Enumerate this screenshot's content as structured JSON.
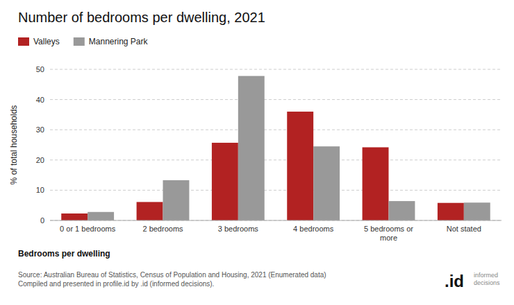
{
  "chart_data": {
    "type": "bar",
    "title": "Number of bedrooms per dwelling, 2021",
    "categories": [
      "0 or 1 bedrooms",
      "2 bedrooms",
      "3 bedrooms",
      "4 bedrooms",
      "5 bedrooms or\nmore",
      "Not stated"
    ],
    "series": [
      {
        "name": "Valleys",
        "color": "#b22222",
        "values": [
          2.3,
          6.1,
          25.7,
          36.0,
          24.2,
          5.8
        ]
      },
      {
        "name": "Mannering Park",
        "color": "#999999",
        "values": [
          2.8,
          13.3,
          47.8,
          24.5,
          6.4,
          5.9
        ]
      }
    ],
    "y_label": "% of total households",
    "x_label": "Bedrooms per dwelling",
    "ylim": [
      0,
      50
    ],
    "yticks": [
      0,
      10,
      20,
      30,
      40,
      50
    ],
    "grid": true,
    "legend": "upper left",
    "annotations": [
      "Source: Australian Bureau of Statistics, Census of Population and Housing, 2021 (Enumerated data)\nCompiled and presented in profile.id by .id (informed decisions).",
      ".id",
      "informed\ndecisions"
    ]
  }
}
